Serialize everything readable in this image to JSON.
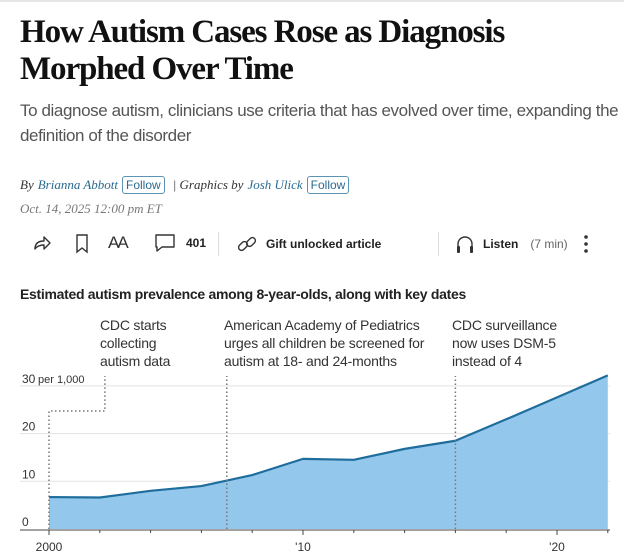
{
  "headline": "How Autism Cases Rose as Diagnosis Morphed Over Time",
  "subheadline": "To diagnose autism, clinicians use criteria that has evolved over time, expanding the definition of the disorder",
  "byline": {
    "by": "By",
    "author1": "Brianna Abbott",
    "follow": "Follow",
    "separator": "| Graphics by",
    "author2": "Josh Ulick"
  },
  "date": "Oct. 14, 2025 12:00 pm ET",
  "toolbar": {
    "share_icon": "share-arrow-icon",
    "bookmark_icon": "bookmark-icon",
    "text_size": "AA",
    "comment_count": "401",
    "gift_label": "Gift unlocked article",
    "listen_label": "Listen",
    "listen_duration": "(7 min)",
    "more_icon": "vertical-ellipsis-icon"
  },
  "chart_data": {
    "type": "area",
    "title": "Estimated autism prevalence among 8-year-olds, along with key dates",
    "x": [
      2000,
      2002,
      2004,
      2006,
      2008,
      2010,
      2012,
      2014,
      2016,
      2018,
      2020,
      2022
    ],
    "values": [
      6.7,
      6.6,
      8.0,
      9.0,
      11.3,
      14.7,
      14.5,
      16.8,
      18.5,
      23.0,
      27.6,
      32.2
    ],
    "xlim": [
      2000,
      2022
    ],
    "ylim": [
      0,
      32
    ],
    "y_ticks": [
      0,
      10,
      20,
      30
    ],
    "y_tick_labels": [
      "0",
      "10",
      "20",
      "30"
    ],
    "y_unit": "per 1,000",
    "x_ticks": [
      2000,
      2010,
      2020
    ],
    "x_tick_labels": [
      "2000",
      "'10",
      "'20"
    ],
    "grid": true,
    "fill_color": "#93c8ec",
    "line_color": "#1f6d9c",
    "annotations": [
      {
        "year": 2000,
        "text": [
          "CDC starts",
          "collecting",
          "autism data"
        ]
      },
      {
        "year": 2007,
        "text": [
          "American Academy of Pediatrics",
          "urges all children be screened for",
          "autism at 18- and 24-months"
        ]
      },
      {
        "year": 2016,
        "text": [
          "CDC surveillance",
          "now uses DSM-5",
          "instead of 4"
        ]
      }
    ]
  }
}
